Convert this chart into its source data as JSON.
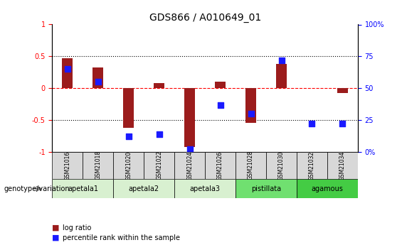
{
  "title": "GDS866 / A010649_01",
  "samples": [
    "GSM21016",
    "GSM21018",
    "GSM21020",
    "GSM21022",
    "GSM21024",
    "GSM21026",
    "GSM21028",
    "GSM21030",
    "GSM21032",
    "GSM21034"
  ],
  "log_ratio": [
    0.47,
    0.32,
    -0.62,
    0.08,
    -0.92,
    0.1,
    -0.54,
    0.38,
    0.0,
    -0.08
  ],
  "percentile_rank": [
    0.65,
    0.55,
    0.12,
    0.14,
    0.02,
    0.37,
    0.3,
    0.72,
    0.22,
    0.22
  ],
  "groups": [
    {
      "label": "apetala1",
      "samples": [
        "GSM21016",
        "GSM21018"
      ],
      "color": "#d8f0d0"
    },
    {
      "label": "apetala2",
      "samples": [
        "GSM21020",
        "GSM21022"
      ],
      "color": "#d8f0d0"
    },
    {
      "label": "apetala3",
      "samples": [
        "GSM21024",
        "GSM21026"
      ],
      "color": "#d8f0d0"
    },
    {
      "label": "pistillata",
      "samples": [
        "GSM21028",
        "GSM21030"
      ],
      "color": "#70e070"
    },
    {
      "label": "agamous",
      "samples": [
        "GSM21032",
        "GSM21034"
      ],
      "color": "#44cc44"
    }
  ],
  "bar_color": "#9b1c1c",
  "dot_color": "#1a1aff",
  "ylim_left": [
    -1,
    1
  ],
  "ylim_right": [
    0,
    100
  ],
  "yticks_left": [
    -1,
    -0.5,
    0,
    0.5,
    1
  ],
  "yticks_right": [
    0,
    25,
    50,
    75,
    100
  ],
  "hlines": [
    -0.5,
    0,
    0.5
  ],
  "hline_styles": [
    "dotted",
    "dashed",
    "dotted"
  ],
  "hline_colors": [
    "black",
    "red",
    "black"
  ],
  "bar_width": 0.35,
  "dot_size": 30,
  "background_color": "#ffffff",
  "legend_items": [
    "log ratio",
    "percentile rank within the sample"
  ],
  "legend_colors": [
    "#9b1c1c",
    "#1a1aff"
  ],
  "genotype_label": "genotype/variation",
  "sample_area_color": "#d8d8d8"
}
